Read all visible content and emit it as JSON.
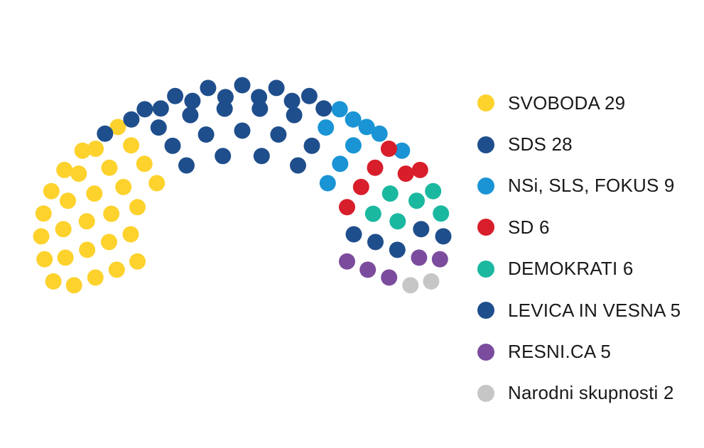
{
  "chart_data": {
    "type": "parliament",
    "total_seats": 90,
    "legend_position": "right",
    "parties": [
      {
        "name": "SVOBODA",
        "seats": 29,
        "label": "SVOBODA 29",
        "color": "#fdd22d"
      },
      {
        "name": "SDS",
        "seats": 28,
        "label": "SDS 28",
        "color": "#1f4e8c"
      },
      {
        "name": "NSi, SLS, FOKUS",
        "seats": 9,
        "label": "NSi, SLS, FOKUS 9",
        "color": "#1a94d4"
      },
      {
        "name": "SD",
        "seats": 6,
        "label": "SD 6",
        "color": "#d81e2b"
      },
      {
        "name": "DEMOKRATI",
        "seats": 6,
        "label": "DEMOKRATI 6",
        "color": "#1bb8a0"
      },
      {
        "name": "LEVICA IN VESNA",
        "seats": 5,
        "label": "LEVICA IN VESNA 5",
        "color": "#1f4e8c"
      },
      {
        "name": "RESNI.CA",
        "seats": 5,
        "label": "RESNI.CA 5",
        "color": "#7b4c9e"
      },
      {
        "name": "Narodni skupnosti",
        "seats": 2,
        "label": "Narodni skupnosti 2",
        "color": "#c6c6c6"
      }
    ]
  }
}
